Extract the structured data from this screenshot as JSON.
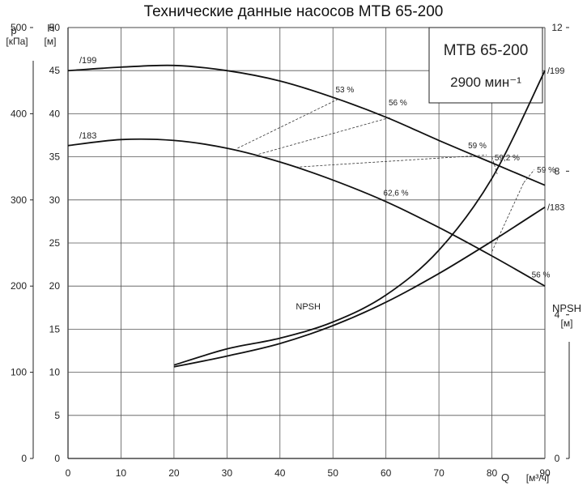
{
  "title": "Технические данные насосов МТВ 65-200",
  "info_box": {
    "model": "МТВ 65-200",
    "speed": "2900 мин⁻¹"
  },
  "axes": {
    "x": {
      "label": "Q",
      "unit": "[м³/ч]",
      "range": [
        0,
        90
      ],
      "ticks": [
        0,
        10,
        20,
        30,
        40,
        50,
        60,
        70,
        80,
        90
      ]
    },
    "h": {
      "label": "H",
      "unit": "[м]",
      "range": [
        0,
        50
      ],
      "ticks": [
        0,
        5,
        10,
        15,
        20,
        25,
        30,
        35,
        40,
        45,
        50
      ]
    },
    "p": {
      "label": "p",
      "unit": "[кПа]",
      "range": [
        0,
        500
      ],
      "ticks": [
        0,
        100,
        200,
        300,
        400,
        500
      ]
    },
    "npsh": {
      "label": "NPSH",
      "unit": "[м]",
      "range": [
        0,
        12
      ],
      "ticks": [
        0,
        4,
        8,
        12
      ]
    }
  },
  "grid": true,
  "chart_data": {
    "type": "line",
    "title": "Технические данные насосов МТВ 65-200",
    "xlabel": "Q [м³/ч]",
    "ylabel": "H [м]",
    "xlim": [
      0,
      90
    ],
    "ylim": [
      0,
      50
    ],
    "series": [
      {
        "name": "/199",
        "axis": "H",
        "x": [
          0,
          10,
          20,
          30,
          40,
          50,
          60,
          70,
          80,
          90
        ],
        "y": [
          45.0,
          45.4,
          45.6,
          45.0,
          43.8,
          41.9,
          39.6,
          36.9,
          34.3,
          31.7
        ]
      },
      {
        "name": "/183",
        "axis": "H",
        "x": [
          0,
          10,
          20,
          30,
          40,
          50,
          60,
          70,
          80,
          90
        ],
        "y": [
          36.3,
          37.0,
          36.9,
          36.0,
          34.4,
          32.3,
          29.8,
          26.8,
          23.5,
          20.0
        ]
      },
      {
        "name": "/199",
        "axis": "NPSH",
        "x": [
          20,
          30,
          40,
          50,
          60,
          70,
          80,
          90
        ],
        "y": [
          2.6,
          3.05,
          3.35,
          3.8,
          4.55,
          5.8,
          7.8,
          10.8
        ]
      },
      {
        "name": "/183",
        "axis": "NPSH",
        "x": [
          20,
          30,
          40,
          50,
          60,
          70,
          80,
          90
        ],
        "y": [
          2.55,
          2.85,
          3.2,
          3.7,
          4.35,
          5.15,
          6.05,
          7.0
        ]
      }
    ],
    "npsh_label": "NPSH",
    "efficiency_labels": [
      {
        "text": "53 %",
        "x": 50.5,
        "y": 42.5
      },
      {
        "text": "56 %",
        "x": 60.5,
        "y": 41.0
      },
      {
        "text": "59 %",
        "x": 75.5,
        "y": 36.0
      },
      {
        "text": "59,2 %",
        "x": 80.5,
        "y": 34.6
      },
      {
        "text": "59 %",
        "x": 88.5,
        "y": 33.2
      },
      {
        "text": "62,6 %",
        "x": 59.5,
        "y": 30.5
      },
      {
        "text": "56 %",
        "x": 87.5,
        "y": 21.0
      }
    ],
    "efficiency_points": [
      {
        "x": 32,
        "y": 36.0
      },
      {
        "x": 51,
        "y": 41.7
      },
      {
        "x": 36,
        "y": 35.3
      },
      {
        "x": 61,
        "y": 39.6
      },
      {
        "x": 43,
        "y": 33.8
      },
      {
        "x": 79,
        "y": 35.2
      },
      {
        "x": 80,
        "y": 35.0
      },
      {
        "x": 81,
        "y": 33.0
      },
      {
        "x": 62,
        "y": 29.6
      },
      {
        "x": 88,
        "y": 21.0
      },
      {
        "x": 80,
        "y": 24.0
      },
      {
        "x": 86,
        "y": 32.0
      },
      {
        "x": 88,
        "y": 33.5
      }
    ],
    "efficiency_links": [
      [
        0,
        1
      ],
      [
        2,
        3
      ],
      [
        4,
        5
      ],
      [
        6,
        7
      ],
      [
        10,
        11
      ],
      [
        11,
        12
      ]
    ]
  }
}
